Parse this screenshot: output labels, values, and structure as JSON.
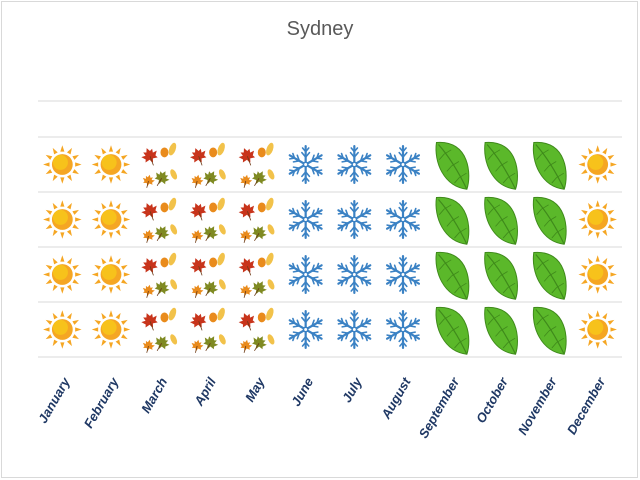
{
  "chart_data": {
    "type": "bar",
    "title": "Sydney",
    "xlabel": "",
    "ylabel": "",
    "categories": [
      "January",
      "February",
      "March",
      "April",
      "May",
      "June",
      "July",
      "August",
      "September",
      "October",
      "November",
      "December"
    ],
    "values": [
      4,
      4,
      4,
      4,
      4,
      4,
      4,
      4,
      4,
      4,
      4,
      4
    ],
    "season_icons": [
      "sun-icon",
      "sun-icon",
      "autumn-leaves-icon",
      "autumn-leaves-icon",
      "autumn-leaves-icon",
      "snowflake-icon",
      "snowflake-icon",
      "snowflake-icon",
      "green-leaf-icon",
      "green-leaf-icon",
      "green-leaf-icon",
      "sun-icon"
    ],
    "ylim": [
      0,
      4
    ],
    "grid": true,
    "colors": {
      "sun": "#f5a623",
      "sun_core": "#f7c21b",
      "autumn_red": "#c8341b",
      "autumn_orange": "#e98b1c",
      "autumn_olive": "#7f8a22",
      "autumn_yellow": "#f2c24a",
      "snowflake": "#3b82c4",
      "green_leaf": "#5bb82a",
      "green_leaf_dark": "#3f8a1b",
      "label": "#1f3864",
      "gridline": "#d9d9d9"
    }
  }
}
